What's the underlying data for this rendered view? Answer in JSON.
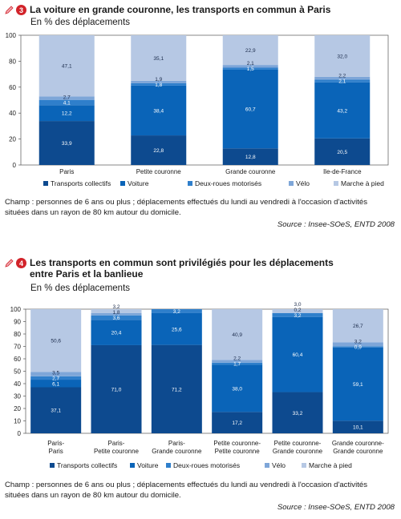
{
  "colors": {
    "transports_collectifs": "#0d4a8f",
    "voiture": "#0a64b8",
    "deux_roues": "#2f7fcb",
    "velo": "#7ea6d8",
    "marche": "#b6c8e4",
    "badge": "#d2232a"
  },
  "chart_data": [
    {
      "type": "bar",
      "stacked": true,
      "number": "3",
      "title": "La voiture en grande couronne, les transports en commun à Paris",
      "subtitle": "En % des déplacements",
      "categories": [
        "Paris",
        "Petite couronne",
        "Grande couronne",
        "Ile-de-France"
      ],
      "series": [
        {
          "name": "Transports collectifs",
          "values": [
            33.9,
            22.8,
            12.8,
            20.5
          ],
          "labels": [
            "33,9",
            "22,8",
            "12,8",
            "20,5"
          ]
        },
        {
          "name": "Voiture",
          "values": [
            12.2,
            38.4,
            60.7,
            43.2
          ],
          "labels": [
            "12,2",
            "38,4",
            "60,7",
            "43,2"
          ]
        },
        {
          "name": "Deux-roues motorisés",
          "values": [
            4.1,
            1.8,
            1.5,
            2.1
          ],
          "labels": [
            "4,1",
            "1,8",
            "1,5",
            "2,1"
          ]
        },
        {
          "name": "Vélo",
          "values": [
            2.7,
            1.9,
            2.1,
            2.2
          ],
          "labels": [
            "2,7",
            "1,9",
            "2,1",
            "2,2"
          ]
        },
        {
          "name": "Marche à pied",
          "values": [
            47.1,
            35.1,
            22.9,
            32.0
          ],
          "labels": [
            "47,1",
            "35,1",
            "22,9",
            "32,0"
          ]
        }
      ],
      "ylim": [
        0,
        100
      ],
      "yticks": [
        0,
        20,
        40,
        60,
        80,
        100
      ],
      "legend_position": "bottom",
      "note": "Champ : personnes de 6 ans ou plus ; déplacements effectués du lundi au vendredi à l'occasion d'activités situées dans un rayon de 80 km autour du domicile.",
      "source": "Source : Insee-SOeS, ENTD 2008"
    },
    {
      "type": "bar",
      "stacked": true,
      "number": "4",
      "title_lines": [
        "Les transports en commun sont privilégiés pour les déplacements",
        "entre Paris et la banlieue"
      ],
      "subtitle": "En % des déplacements",
      "categories": [
        [
          "Paris-",
          "Paris"
        ],
        [
          "Paris-",
          "Petite couronne"
        ],
        [
          "Paris-",
          "Grande couronne"
        ],
        [
          "Petite couronne-",
          "Petite couronne"
        ],
        [
          "Petite couronne-",
          "Grande couronne"
        ],
        [
          "Grande couronne-",
          "Grande couronne"
        ]
      ],
      "series": [
        {
          "name": "Transports collectifs",
          "values": [
            37.1,
            71.0,
            71.2,
            17.2,
            33.2,
            10.1
          ],
          "labels": [
            "37,1",
            "71,0",
            "71,2",
            "17,2",
            "33,2",
            "10,1"
          ]
        },
        {
          "name": "Voiture",
          "values": [
            6.1,
            20.4,
            25.6,
            38.0,
            60.4,
            59.1
          ],
          "labels": [
            "6,1",
            "20,4",
            "25,6",
            "38,0",
            "60,4",
            "59,1"
          ]
        },
        {
          "name": "Deux-roues motorisés",
          "values": [
            2.7,
            3.6,
            3.2,
            1.7,
            3.2,
            0.9
          ],
          "labels": [
            "2,7",
            "3,6",
            "3,2",
            "1,7",
            "3,2",
            "0,9"
          ]
        },
        {
          "name": "Vélo",
          "values": [
            3.5,
            1.8,
            0,
            2.2,
            0.2,
            3.2
          ],
          "labels": [
            "3,5",
            "1,8",
            "",
            "2,2",
            "0,2",
            "3,2"
          ]
        },
        {
          "name": "Marche à pied",
          "values": [
            50.6,
            3.2,
            0,
            40.9,
            3.0,
            26.7
          ],
          "labels": [
            "50,6",
            "3,2",
            "",
            "40,9",
            "3,0",
            "26,7"
          ]
        }
      ],
      "ylim": [
        0,
        100
      ],
      "yticks": [
        0,
        10,
        20,
        30,
        40,
        50,
        60,
        70,
        80,
        90,
        100
      ],
      "legend_position": "bottom",
      "note": "Champ : personnes de 6 ans ou plus ; déplacements effectués du lundi au vendredi à l'occasion d'activités situées dans un rayon de 80 km autour du domicile.",
      "source": "Source : Insee-SOeS, ENTD 2008"
    }
  ]
}
